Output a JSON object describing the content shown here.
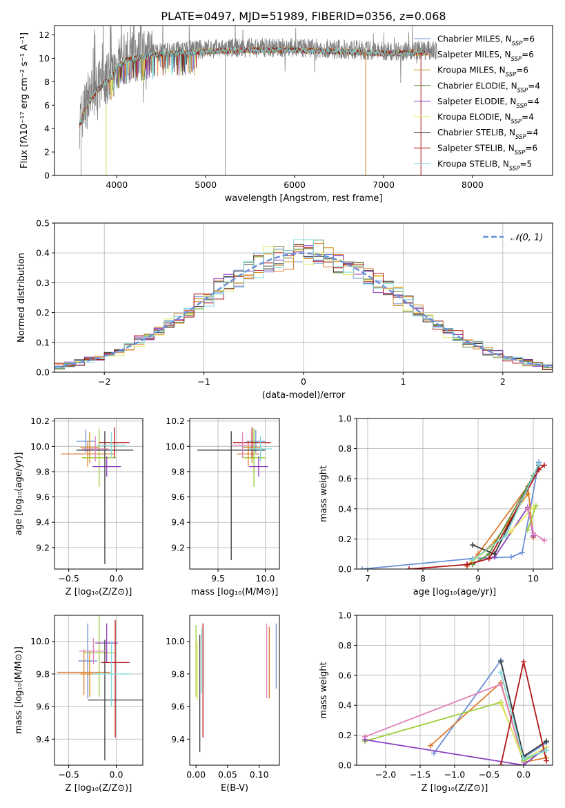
{
  "title": "PLATE=0497, MJD=51989, FIBERID=0356, z=0.068",
  "colors": [
    "#6a8fd8",
    "#e07a2e",
    "#d58a1f",
    "#5b8a3c",
    "#8c3fc0",
    "#e8e860",
    "#3a3a3a",
    "#b01515",
    "#7fd8d8",
    "#e080b8",
    "#9acd32",
    "#a0a0a0"
  ],
  "chart_data": [
    {
      "id": "spectrum",
      "type": "line",
      "xlabel": "wavelength [Angstrom, rest frame]",
      "ylabel": "Flux [fλ10⁻¹⁷ erg cm⁻² s⁻¹ A⁻¹]",
      "xlim": [
        3300,
        8900
      ],
      "ylim": [
        0,
        12.8
      ],
      "xticks": [
        4000,
        5000,
        6000,
        7000,
        8000
      ],
      "yticks": [
        0,
        2,
        4,
        6,
        8,
        10,
        12
      ],
      "grid": false,
      "legend_position": "top-right",
      "legend": [
        {
          "label": "Chabrier MILES, N",
          "sub": "SSP",
          "eq": "=6"
        },
        {
          "label": "Salpeter MILES, N",
          "sub": "SSP",
          "eq": "=6"
        },
        {
          "label": "Kroupa MILES, N",
          "sub": "SSP",
          "eq": "=6"
        },
        {
          "label": "Chabrier ELODIE, N",
          "sub": "SSP",
          "eq": "=4"
        },
        {
          "label": "Salpeter ELODIE, N",
          "sub": "SSP",
          "eq": "=4"
        },
        {
          "label": "Kroupa ELODIE, N",
          "sub": "SSP",
          "eq": "=4"
        },
        {
          "label": "Chabrier STELIB, N",
          "sub": "SSP",
          "eq": "=4"
        },
        {
          "label": "Salpeter STELIB, N",
          "sub": "SSP",
          "eq": "=6"
        },
        {
          "label": "Kroupa STELIB, N",
          "sub": "SSP",
          "eq": "=5"
        }
      ],
      "data_envelope": {
        "x": [
          3580,
          3650,
          3750,
          3850,
          3950,
          4000,
          4100,
          4200,
          4300,
          4400,
          4600,
          4800,
          5000,
          5500,
          6000,
          6500,
          7000,
          7500,
          7600
        ],
        "y": [
          4.5,
          6.0,
          7.2,
          8.0,
          8.6,
          9.4,
          10.0,
          10.2,
          10.3,
          10.5,
          10.6,
          10.7,
          10.8,
          10.9,
          10.9,
          10.8,
          10.6,
          10.7,
          10.6
        ]
      },
      "model_break_x": 7500
    },
    {
      "id": "residuals",
      "type": "step",
      "xlabel": "(data-model)/error",
      "ylabel": "Normed distribution",
      "xlim": [
        -2.5,
        2.5
      ],
      "ylim": [
        0,
        0.5
      ],
      "xticks": [
        -2,
        -1,
        0,
        1,
        2
      ],
      "yticks": [
        0.0,
        0.1,
        0.2,
        0.3,
        0.4,
        0.5
      ],
      "grid": true,
      "legend_position": "top-right",
      "legend": [
        {
          "label": "𝒩(0, 1)",
          "style": "dashed"
        }
      ],
      "bin_width": 0.1,
      "n_histograms": 9,
      "gaussian": {
        "mean": 0,
        "sigma": 1
      }
    },
    {
      "id": "age_vs_Z",
      "type": "errorbar",
      "xlabel": "Z [log₁₀(Z/Z⊙)]",
      "ylabel": "age  [log₁₀(age/yr)]",
      "xlim": [
        -0.65,
        0.28
      ],
      "ylim": [
        9.03,
        10.22
      ],
      "xticks": [
        -0.5,
        0.0
      ],
      "yticks": [
        9.2,
        9.4,
        9.6,
        9.8,
        10.0,
        10.2
      ],
      "grid": true,
      "points": [
        {
          "x": -0.32,
          "xerr": [
            0.1,
            0.1
          ],
          "y": 10.04,
          "yerr": [
            0.09,
            0.09
          ],
          "c": 0
        },
        {
          "x": -0.3,
          "xerr": [
            0.28,
            0.28
          ],
          "y": 9.94,
          "yerr": [
            0.1,
            0.1
          ],
          "c": 1
        },
        {
          "x": -0.28,
          "xerr": [
            0.1,
            0.1
          ],
          "y": 9.99,
          "yerr": [
            0.12,
            0.12
          ],
          "c": 2
        },
        {
          "x": -0.18,
          "xerr": [
            0.18,
            0.18
          ],
          "y": 9.91,
          "yerr": [
            0.23,
            0.23
          ],
          "c": 10
        },
        {
          "x": -0.1,
          "xerr": [
            0.15,
            0.15
          ],
          "y": 9.84,
          "yerr": [
            0.08,
            0.08
          ],
          "c": 4
        },
        {
          "x": -0.12,
          "xerr": [
            0.3,
            0.3
          ],
          "y": 9.97,
          "yerr": [
            0.9,
            0.15
          ],
          "c": 6
        },
        {
          "x": -0.02,
          "xerr": [
            0.16,
            0.16
          ],
          "y": 10.03,
          "yerr": [
            0.12,
            0.12
          ],
          "c": 7
        },
        {
          "x": -0.22,
          "xerr": [
            0.14,
            0.14
          ],
          "y": 9.98,
          "yerr": [
            0.1,
            0.1
          ],
          "c": 9
        },
        {
          "x": -0.05,
          "xerr": [
            0.15,
            0.15
          ],
          "y": 10.01,
          "yerr": [
            0.1,
            0.1
          ],
          "c": 8
        }
      ]
    },
    {
      "id": "age_vs_mass",
      "type": "errorbar",
      "xlabel": "mass [log₁₀(M/M⊙)]",
      "ylabel": "",
      "xlim": [
        9.2,
        10.15
      ],
      "ylim": [
        9.03,
        10.22
      ],
      "xticks": [
        9.5,
        10.0
      ],
      "yticks": [
        9.2,
        9.4,
        9.6,
        9.8,
        10.0,
        10.2
      ],
      "grid": true,
      "points": [
        {
          "x": 9.9,
          "xerr": [
            0.1,
            0.1
          ],
          "y": 10.04,
          "yerr": [
            0.09,
            0.09
          ],
          "c": 0
        },
        {
          "x": 9.82,
          "xerr": [
            0.12,
            0.12
          ],
          "y": 9.94,
          "yerr": [
            0.1,
            0.1
          ],
          "c": 1
        },
        {
          "x": 9.86,
          "xerr": [
            0.1,
            0.1
          ],
          "y": 9.99,
          "yerr": [
            0.12,
            0.12
          ],
          "c": 2
        },
        {
          "x": 9.88,
          "xerr": [
            0.12,
            0.12
          ],
          "y": 9.91,
          "yerr": [
            0.23,
            0.23
          ],
          "c": 10
        },
        {
          "x": 9.93,
          "xerr": [
            0.1,
            0.1
          ],
          "y": 9.84,
          "yerr": [
            0.08,
            0.08
          ],
          "c": 4
        },
        {
          "x": 9.64,
          "xerr": [
            0.36,
            0.36
          ],
          "y": 9.97,
          "yerr": [
            0.87,
            0.15
          ],
          "c": 6
        },
        {
          "x": 9.86,
          "xerr": [
            0.2,
            0.2
          ],
          "y": 10.03,
          "yerr": [
            0.12,
            0.12
          ],
          "c": 7
        },
        {
          "x": 9.95,
          "xerr": [
            0.12,
            0.12
          ],
          "y": 9.98,
          "yerr": [
            0.1,
            0.1
          ],
          "c": 8
        },
        {
          "x": 9.76,
          "xerr": [
            0.12,
            0.12
          ],
          "y": 10.01,
          "yerr": [
            0.1,
            0.1
          ],
          "c": 9
        }
      ]
    },
    {
      "id": "weight_vs_age",
      "type": "line",
      "xlabel": "age  [log₁₀(age/yr)]",
      "ylabel": "mass weight",
      "xlim": [
        6.8,
        10.35
      ],
      "ylim": [
        0,
        1.0
      ],
      "xticks": [
        7,
        8,
        9,
        10
      ],
      "yticks": [
        0.0,
        0.2,
        0.4,
        0.6,
        0.8,
        1.0
      ],
      "grid": true,
      "series": [
        {
          "c": 0,
          "x": [
            6.9,
            8.9,
            9.6,
            9.8,
            10.1
          ],
          "y": [
            0.0,
            0.07,
            0.08,
            0.11,
            0.71
          ]
        },
        {
          "c": 1,
          "x": [
            8.8,
            9.0,
            9.9,
            10.0
          ],
          "y": [
            0.02,
            0.1,
            0.55,
            0.21
          ]
        },
        {
          "c": 2,
          "x": [
            8.8,
            9.3,
            9.9
          ],
          "y": [
            0.02,
            0.18,
            0.5
          ]
        },
        {
          "c": 3,
          "x": [
            8.9,
            9.2,
            10.0
          ],
          "y": [
            0.03,
            0.1,
            0.62
          ]
        },
        {
          "c": 4,
          "x": [
            8.8,
            9.3,
            9.9,
            10.0
          ],
          "y": [
            0.03,
            0.08,
            0.41,
            0.22
          ]
        },
        {
          "c": 5,
          "x": [
            8.9,
            9.6,
            10.0
          ],
          "y": [
            0.05,
            0.25,
            0.41
          ]
        },
        {
          "c": 6,
          "x": [
            8.9,
            9.3,
            10.1
          ],
          "y": [
            0.16,
            0.1,
            0.69
          ]
        },
        {
          "c": 7,
          "x": [
            7.75,
            8.8,
            9.2,
            10.1,
            10.2
          ],
          "y": [
            0.0,
            0.03,
            0.07,
            0.66,
            0.69
          ]
        },
        {
          "c": 8,
          "x": [
            8.9,
            9.5,
            10.1
          ],
          "y": [
            0.06,
            0.22,
            0.7
          ]
        },
        {
          "c": 9,
          "x": [
            9.9,
            10.0,
            10.2
          ],
          "y": [
            0.4,
            0.24,
            0.19
          ]
        },
        {
          "c": 10,
          "x": [
            9.9,
            10.05
          ],
          "y": [
            0.26,
            0.42
          ]
        }
      ]
    },
    {
      "id": "mass_vs_Z",
      "type": "errorbar",
      "xlabel": "Z [log₁₀(Z/Z⊙)]",
      "ylabel": "mass [log₁₀(M/M⊙)]",
      "xlim": [
        -0.65,
        0.28
      ],
      "ylim": [
        9.24,
        10.16
      ],
      "xticks": [
        -0.5,
        0.0
      ],
      "yticks": [
        9.4,
        9.6,
        9.8,
        10.0
      ],
      "grid": true,
      "points": [
        {
          "x": -0.3,
          "xerr": [
            0.1,
            0.1
          ],
          "y": 9.88,
          "yerr": [
            0.23,
            0.23
          ],
          "c": 0
        },
        {
          "x": -0.34,
          "xerr": [
            0.28,
            0.28
          ],
          "y": 9.81,
          "yerr": [
            0.14,
            0.14
          ],
          "c": 1
        },
        {
          "x": -0.28,
          "xerr": [
            0.1,
            0.1
          ],
          "y": 9.8,
          "yerr": [
            0.14,
            0.14
          ],
          "c": 2
        },
        {
          "x": -0.18,
          "xerr": [
            0.16,
            0.16
          ],
          "y": 9.93,
          "yerr": [
            0.27,
            0.27
          ],
          "c": 10
        },
        {
          "x": -0.1,
          "xerr": [
            0.12,
            0.12
          ],
          "y": 9.99,
          "yerr": [
            0.12,
            0.12
          ],
          "c": 4
        },
        {
          "x": -0.12,
          "xerr": [
            0.18,
            0.4
          ],
          "y": 9.64,
          "yerr": [
            0.37,
            0.37
          ],
          "c": 6
        },
        {
          "x": -0.01,
          "xerr": [
            0.15,
            0.15
          ],
          "y": 9.87,
          "yerr": [
            0.46,
            0.26
          ],
          "c": 7
        },
        {
          "x": -0.24,
          "xerr": [
            0.15,
            0.15
          ],
          "y": 9.94,
          "yerr": [
            0.08,
            0.08
          ],
          "c": 9
        },
        {
          "x": -0.05,
          "xerr": [
            0.2,
            0.2
          ],
          "y": 9.8,
          "yerr": [
            0.2,
            0.2
          ],
          "c": 8
        }
      ]
    },
    {
      "id": "mass_vs_EBV",
      "type": "errorbar",
      "xlabel": "E(B-V)",
      "ylabel": "",
      "xlim": [
        -0.01,
        0.132
      ],
      "ylim": [
        9.24,
        10.16
      ],
      "xticks": [
        0.0,
        0.05,
        0.1
      ],
      "yticks": [
        9.4,
        9.6,
        9.8,
        10.0
      ],
      "grid": false,
      "points": [
        {
          "x": 0.0,
          "y": 9.88,
          "yerr": [
            0.22,
            0.22
          ],
          "c": 10
        },
        {
          "x": 0.002,
          "y": 9.82,
          "yerr": [
            0.18,
            0.18
          ],
          "c": 5
        },
        {
          "x": 0.006,
          "y": 9.68,
          "yerr": [
            0.36,
            0.36
          ],
          "c": 6
        },
        {
          "x": 0.009,
          "y": 9.88,
          "yerr": [
            0.2,
            0.2
          ],
          "c": 8
        },
        {
          "x": 0.011,
          "y": 9.87,
          "yerr": [
            0.46,
            0.24
          ],
          "c": 7
        },
        {
          "x": 0.112,
          "y": 9.88,
          "yerr": [
            0.23,
            0.23
          ],
          "c": 9
        },
        {
          "x": 0.116,
          "y": 9.87,
          "yerr": [
            0.22,
            0.22
          ],
          "c": 1
        },
        {
          "x": 0.127,
          "y": 9.91,
          "yerr": [
            0.2,
            0.2
          ],
          "c": 0
        }
      ]
    },
    {
      "id": "weight_vs_Z",
      "type": "line",
      "xlabel": "Z [log₁₀(Z/Z⊙)]",
      "ylabel": "mass weight",
      "xlim": [
        -2.42,
        0.42
      ],
      "ylim": [
        0,
        1.0
      ],
      "xticks": [
        -2.0,
        -1.5,
        -1.0,
        -0.5,
        0.0
      ],
      "yticks": [
        0.0,
        0.2,
        0.4,
        0.6,
        0.8,
        1.0
      ],
      "grid": true,
      "series": [
        {
          "c": 0,
          "x": [
            -1.3,
            -0.33,
            0.0,
            0.33
          ],
          "y": [
            0.08,
            0.7,
            0.05,
            0.15
          ]
        },
        {
          "c": 1,
          "x": [
            -1.35,
            -0.33,
            0.0,
            0.33
          ],
          "y": [
            0.13,
            0.55,
            0.02,
            0.05
          ]
        },
        {
          "c": 9,
          "x": [
            -2.3,
            -0.33,
            0.0
          ],
          "y": [
            0.19,
            0.54,
            0.02
          ]
        },
        {
          "c": 10,
          "x": [
            -2.3,
            -0.33,
            0.0,
            0.33
          ],
          "y": [
            0.16,
            0.42,
            0.03,
            0.1
          ]
        },
        {
          "c": 4,
          "x": [
            -2.3,
            0.0,
            0.33
          ],
          "y": [
            0.17,
            0.0,
            0.12
          ]
        },
        {
          "c": 5,
          "x": [
            -0.33,
            0.0,
            0.33
          ],
          "y": [
            0.41,
            0.04,
            0.12
          ]
        },
        {
          "c": 6,
          "x": [
            -0.33,
            0.0,
            0.33
          ],
          "y": [
            0.69,
            0.06,
            0.16
          ]
        },
        {
          "c": 7,
          "x": [
            -0.33,
            0.0,
            0.33
          ],
          "y": [
            0.0,
            0.69,
            0.03
          ]
        },
        {
          "c": 8,
          "x": [
            -0.33,
            0.0,
            0.33
          ],
          "y": [
            0.62,
            0.04,
            0.1
          ]
        }
      ]
    }
  ]
}
